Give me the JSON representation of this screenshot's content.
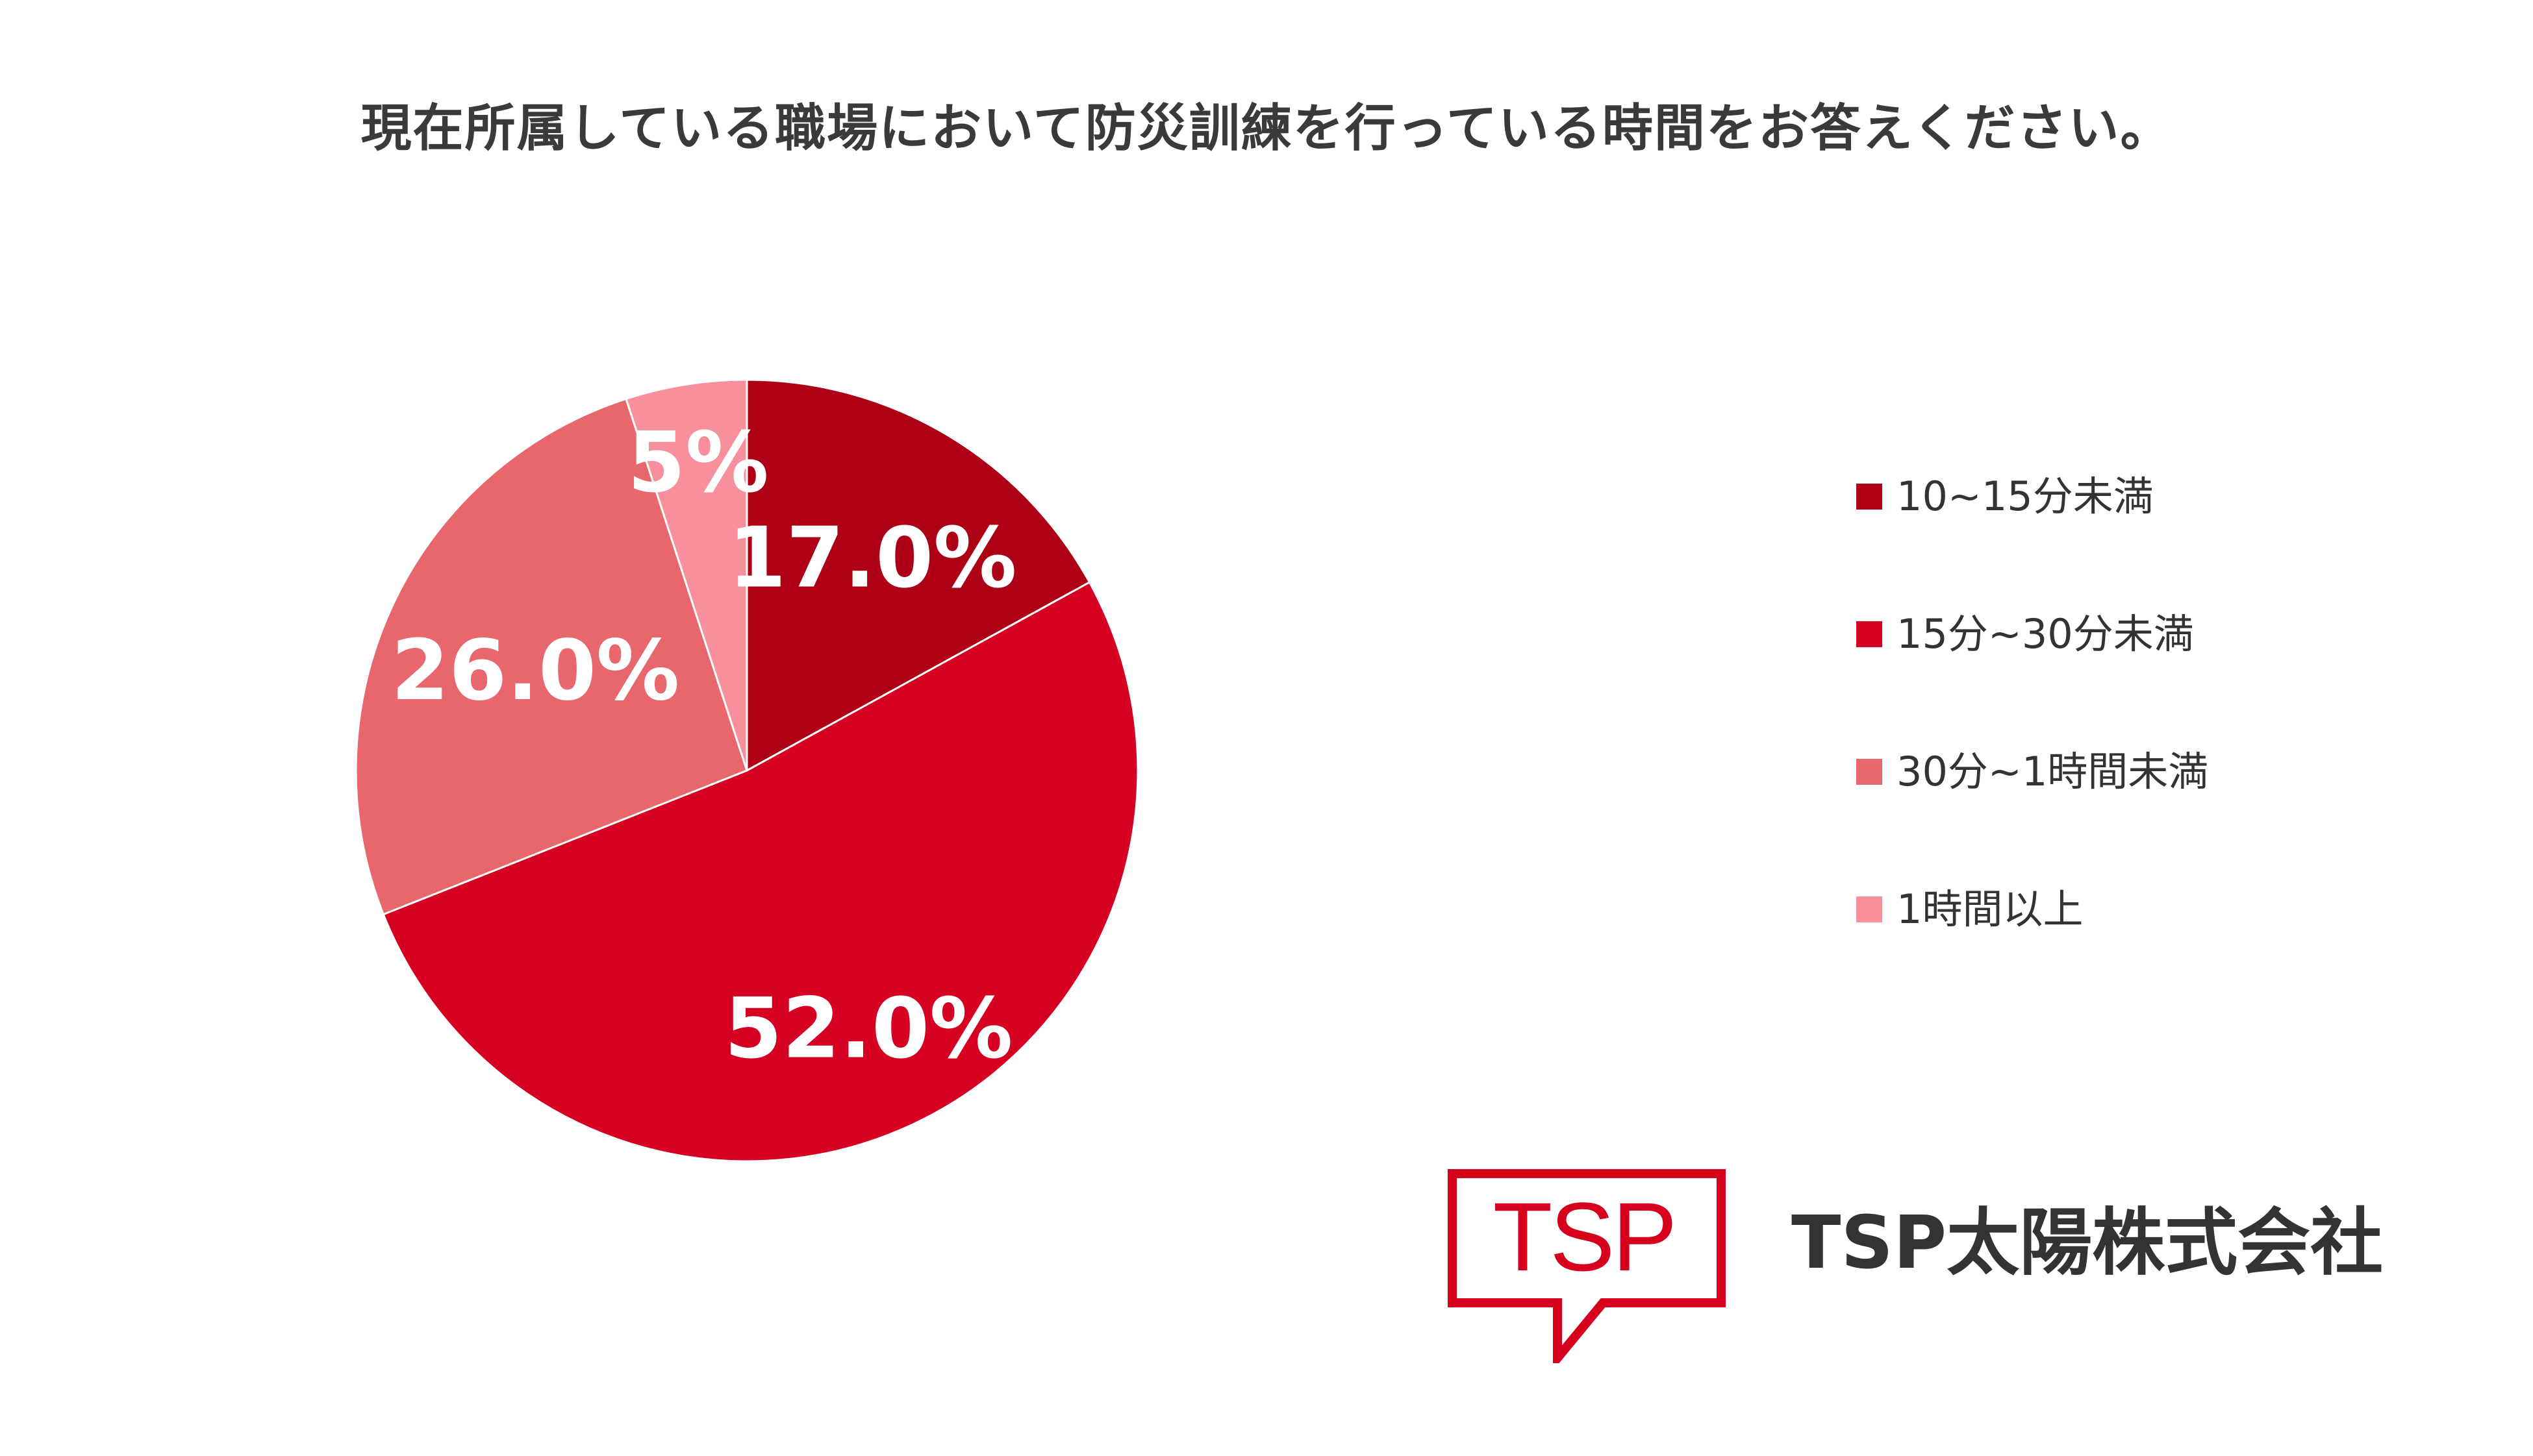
{
  "colors": {
    "background": "#ffffff",
    "title_text": "#3a3a3a",
    "label_text": "#ffffff",
    "brand_red": "#d6001c"
  },
  "chart_data": {
    "type": "pie",
    "title": "現在所属している職場において防災訓練を行っている時間をお答えください。",
    "legend_position": "right",
    "slices": [
      {
        "label": "10~15分未満",
        "value": 17.0,
        "display": "17.0%",
        "color": "#ad0017"
      },
      {
        "label": "15分~30分未満",
        "value": 52.0,
        "display": "52.0%",
        "color": "#d60022"
      },
      {
        "label": "30分~1時間未満",
        "value": 26.0,
        "display": "26.0%",
        "color": "#e8676c"
      },
      {
        "label": "1時間以上",
        "value": 5.0,
        "display": "5%",
        "color": "#f7909c"
      }
    ]
  },
  "logo": {
    "mark_text": "TSP",
    "company_name": "TSP太陽株式会社"
  }
}
